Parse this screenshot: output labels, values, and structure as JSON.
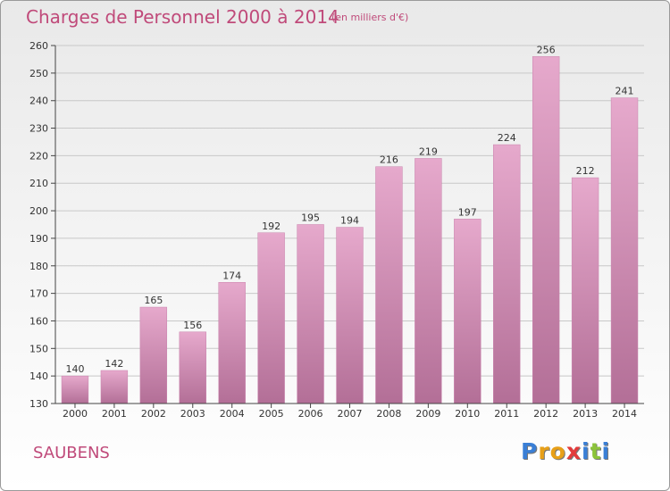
{
  "chart_data": {
    "type": "bar",
    "title": "Charges de Personnel 2000 à 2014",
    "subtitle": "(en milliers d'€)",
    "categories": [
      "2000",
      "2001",
      "2002",
      "2003",
      "2004",
      "2005",
      "2006",
      "2007",
      "2008",
      "2009",
      "2010",
      "2011",
      "2012",
      "2013",
      "2014"
    ],
    "values": [
      140,
      142,
      165,
      156,
      174,
      192,
      195,
      194,
      216,
      219,
      197,
      224,
      256,
      212,
      241
    ],
    "ylim": [
      130,
      260
    ],
    "yticks": [
      130,
      140,
      150,
      160,
      170,
      180,
      190,
      200,
      210,
      220,
      230,
      240,
      250,
      260
    ],
    "grid": true,
    "legend": "none",
    "bar_color": "#d88fb8"
  },
  "commune": "SAUBENS",
  "logo": {
    "letters": [
      {
        "ch": "P",
        "color": "#3a7fd6"
      },
      {
        "ch": "r",
        "color": "#e8a018"
      },
      {
        "ch": "o",
        "color": "#e8a018"
      },
      {
        "ch": "x",
        "color": "#e23a3a"
      },
      {
        "ch": "i",
        "color": "#3a7fd6"
      },
      {
        "ch": "t",
        "color": "#8cc43a"
      },
      {
        "ch": "i",
        "color": "#3a7fd6"
      }
    ]
  }
}
